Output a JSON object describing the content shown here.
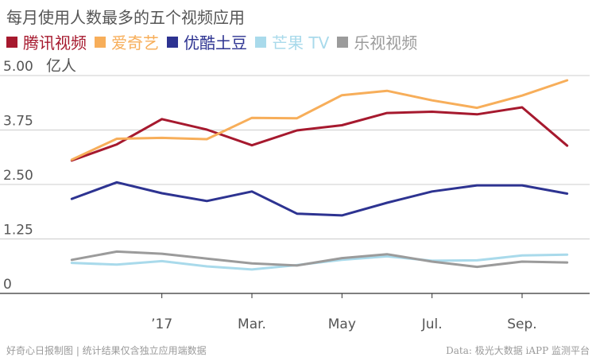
{
  "title": "每月使用人数最多的五个视频应用",
  "footer": {
    "left": "好奇心日报制图 | 统计结果仅含独立应用端数据",
    "right": "Data: 极光大数据 iAPP 监测平台"
  },
  "colors": {
    "tencent": "#a6192e",
    "iqiyi": "#f7ae5a",
    "youku": "#2d3391",
    "mango": "#a9daeb",
    "letv": "#9b9b9b",
    "grid": "#cccccc",
    "text": "#555555"
  },
  "chart_data": {
    "type": "line",
    "ylabel": "亿人",
    "ylim": [
      0,
      5.0
    ],
    "yticks": [
      "0",
      "1.25",
      "2.50",
      "3.75",
      "5.00"
    ],
    "ytick_values": [
      0,
      1.25,
      2.5,
      3.75,
      5.0
    ],
    "x": [
      1,
      2,
      3,
      4,
      5,
      6,
      7,
      8,
      9,
      10,
      11,
      12
    ],
    "xlim": [
      0.5,
      12.5
    ],
    "xticks": [
      {
        "label": "’17",
        "pos": 3
      },
      {
        "label": "Mar.",
        "pos": 5
      },
      {
        "label": "May",
        "pos": 7
      },
      {
        "label": "Jul.",
        "pos": 9
      },
      {
        "label": "Sep.",
        "pos": 11
      }
    ],
    "grid": true,
    "legend_position": "top",
    "series": [
      {
        "name": "腾讯视频",
        "color_key": "tencent",
        "values": [
          3.05,
          3.42,
          4.0,
          3.76,
          3.4,
          3.74,
          3.86,
          4.14,
          4.17,
          4.11,
          4.27,
          3.39
        ]
      },
      {
        "name": "爱奇艺",
        "color_key": "iqiyi",
        "values": [
          3.07,
          3.55,
          3.57,
          3.54,
          4.03,
          4.02,
          4.55,
          4.65,
          4.43,
          4.26,
          4.54,
          4.89
        ]
      },
      {
        "name": "优酷土豆",
        "color_key": "youku",
        "values": [
          2.17,
          2.55,
          2.3,
          2.12,
          2.34,
          1.83,
          1.79,
          2.08,
          2.34,
          2.48,
          2.48,
          2.29
        ]
      },
      {
        "name": "芒果 TV",
        "color_key": "mango",
        "values": [
          0.7,
          0.66,
          0.74,
          0.62,
          0.55,
          0.65,
          0.77,
          0.85,
          0.75,
          0.76,
          0.87,
          0.89
        ]
      },
      {
        "name": "乐视视频",
        "color_key": "letv",
        "values": [
          0.77,
          0.96,
          0.91,
          0.8,
          0.69,
          0.64,
          0.81,
          0.9,
          0.73,
          0.61,
          0.73,
          0.71
        ]
      }
    ]
  }
}
